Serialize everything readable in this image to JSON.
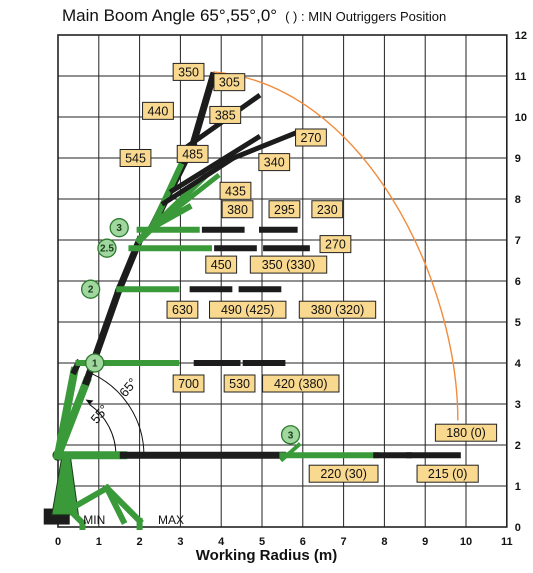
{
  "title": "Main Boom Angle 65°,55°,0°",
  "subtitle": "( ) : MIN Outriggers Position",
  "xlabel": "Working Radius (m)",
  "x_ticks": [
    "0",
    "1",
    "2",
    "3",
    "4",
    "5",
    "6",
    "7",
    "8",
    "9",
    "10",
    "11"
  ],
  "y_ticks": [
    "0",
    "1",
    "2",
    "3",
    "4",
    "5",
    "6",
    "7",
    "8",
    "9",
    "10",
    "11",
    "12"
  ],
  "angle_labels": [
    "65°",
    "55°"
  ],
  "outrigger_labels": {
    "min": "MIN",
    "max": "MAX"
  },
  "section_labels": [
    "1",
    "2",
    "2.5",
    "3",
    "3"
  ],
  "load_labels": [
    "350",
    "305",
    "440",
    "385",
    "270",
    "545",
    "485",
    "340",
    "435",
    "380",
    "295",
    "230",
    "270",
    "450",
    "350 (330)",
    "630",
    "490 (425)",
    "380 (320)",
    "700",
    "530",
    "420 (380)",
    "180 (0)",
    "220 (30)",
    "215 (0)"
  ],
  "colors": {
    "boom_green": "#3a9a3a",
    "boom_black": "#1c1c1c",
    "box_fill": "#f9d98f",
    "box_stroke": "#222222",
    "envelope": "#f28c3c",
    "grid": "#222222"
  }
}
